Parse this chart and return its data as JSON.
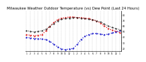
{
  "title": "Milwaukee Weather Outdoor Temperature (vs) Dew Point (Last 24 Hours)",
  "title_fontsize": 3.8,
  "background_color": "#ffffff",
  "grid_color": "#bbbbbb",
  "x_ticks": [
    "1",
    "2",
    "3",
    "4",
    "5",
    "6",
    "7",
    "8",
    "9",
    "10",
    "11",
    "12",
    "1",
    "2",
    "3",
    "4",
    "5",
    "6",
    "7",
    "8",
    "9",
    "10",
    "11",
    "12",
    "1"
  ],
  "y_right_labels": [
    "80",
    "70",
    "60",
    "50",
    "40",
    "30",
    "20"
  ],
  "y_right_values": [
    80,
    70,
    60,
    50,
    40,
    30,
    20
  ],
  "ylim": [
    15,
    88
  ],
  "n_points": 25,
  "temp_color": "#dd1111",
  "dew_color": "#1111cc",
  "hi_color": "#111111",
  "temp_values": [
    45,
    44,
    43,
    44,
    45,
    52,
    60,
    67,
    72,
    75,
    76,
    77,
    77,
    76,
    76,
    75,
    74,
    72,
    70,
    66,
    61,
    56,
    53,
    51,
    49
  ],
  "dew_values": [
    40,
    39,
    38,
    38,
    37,
    36,
    33,
    28,
    23,
    19,
    18,
    19,
    20,
    27,
    36,
    42,
    45,
    47,
    47,
    46,
    45,
    46,
    48,
    50,
    52
  ],
  "hi_values": [
    52,
    51,
    50,
    51,
    52,
    55,
    60,
    65,
    70,
    73,
    74,
    75,
    76,
    76,
    75,
    74,
    73,
    72,
    70,
    68,
    64,
    61,
    58,
    56,
    54
  ]
}
